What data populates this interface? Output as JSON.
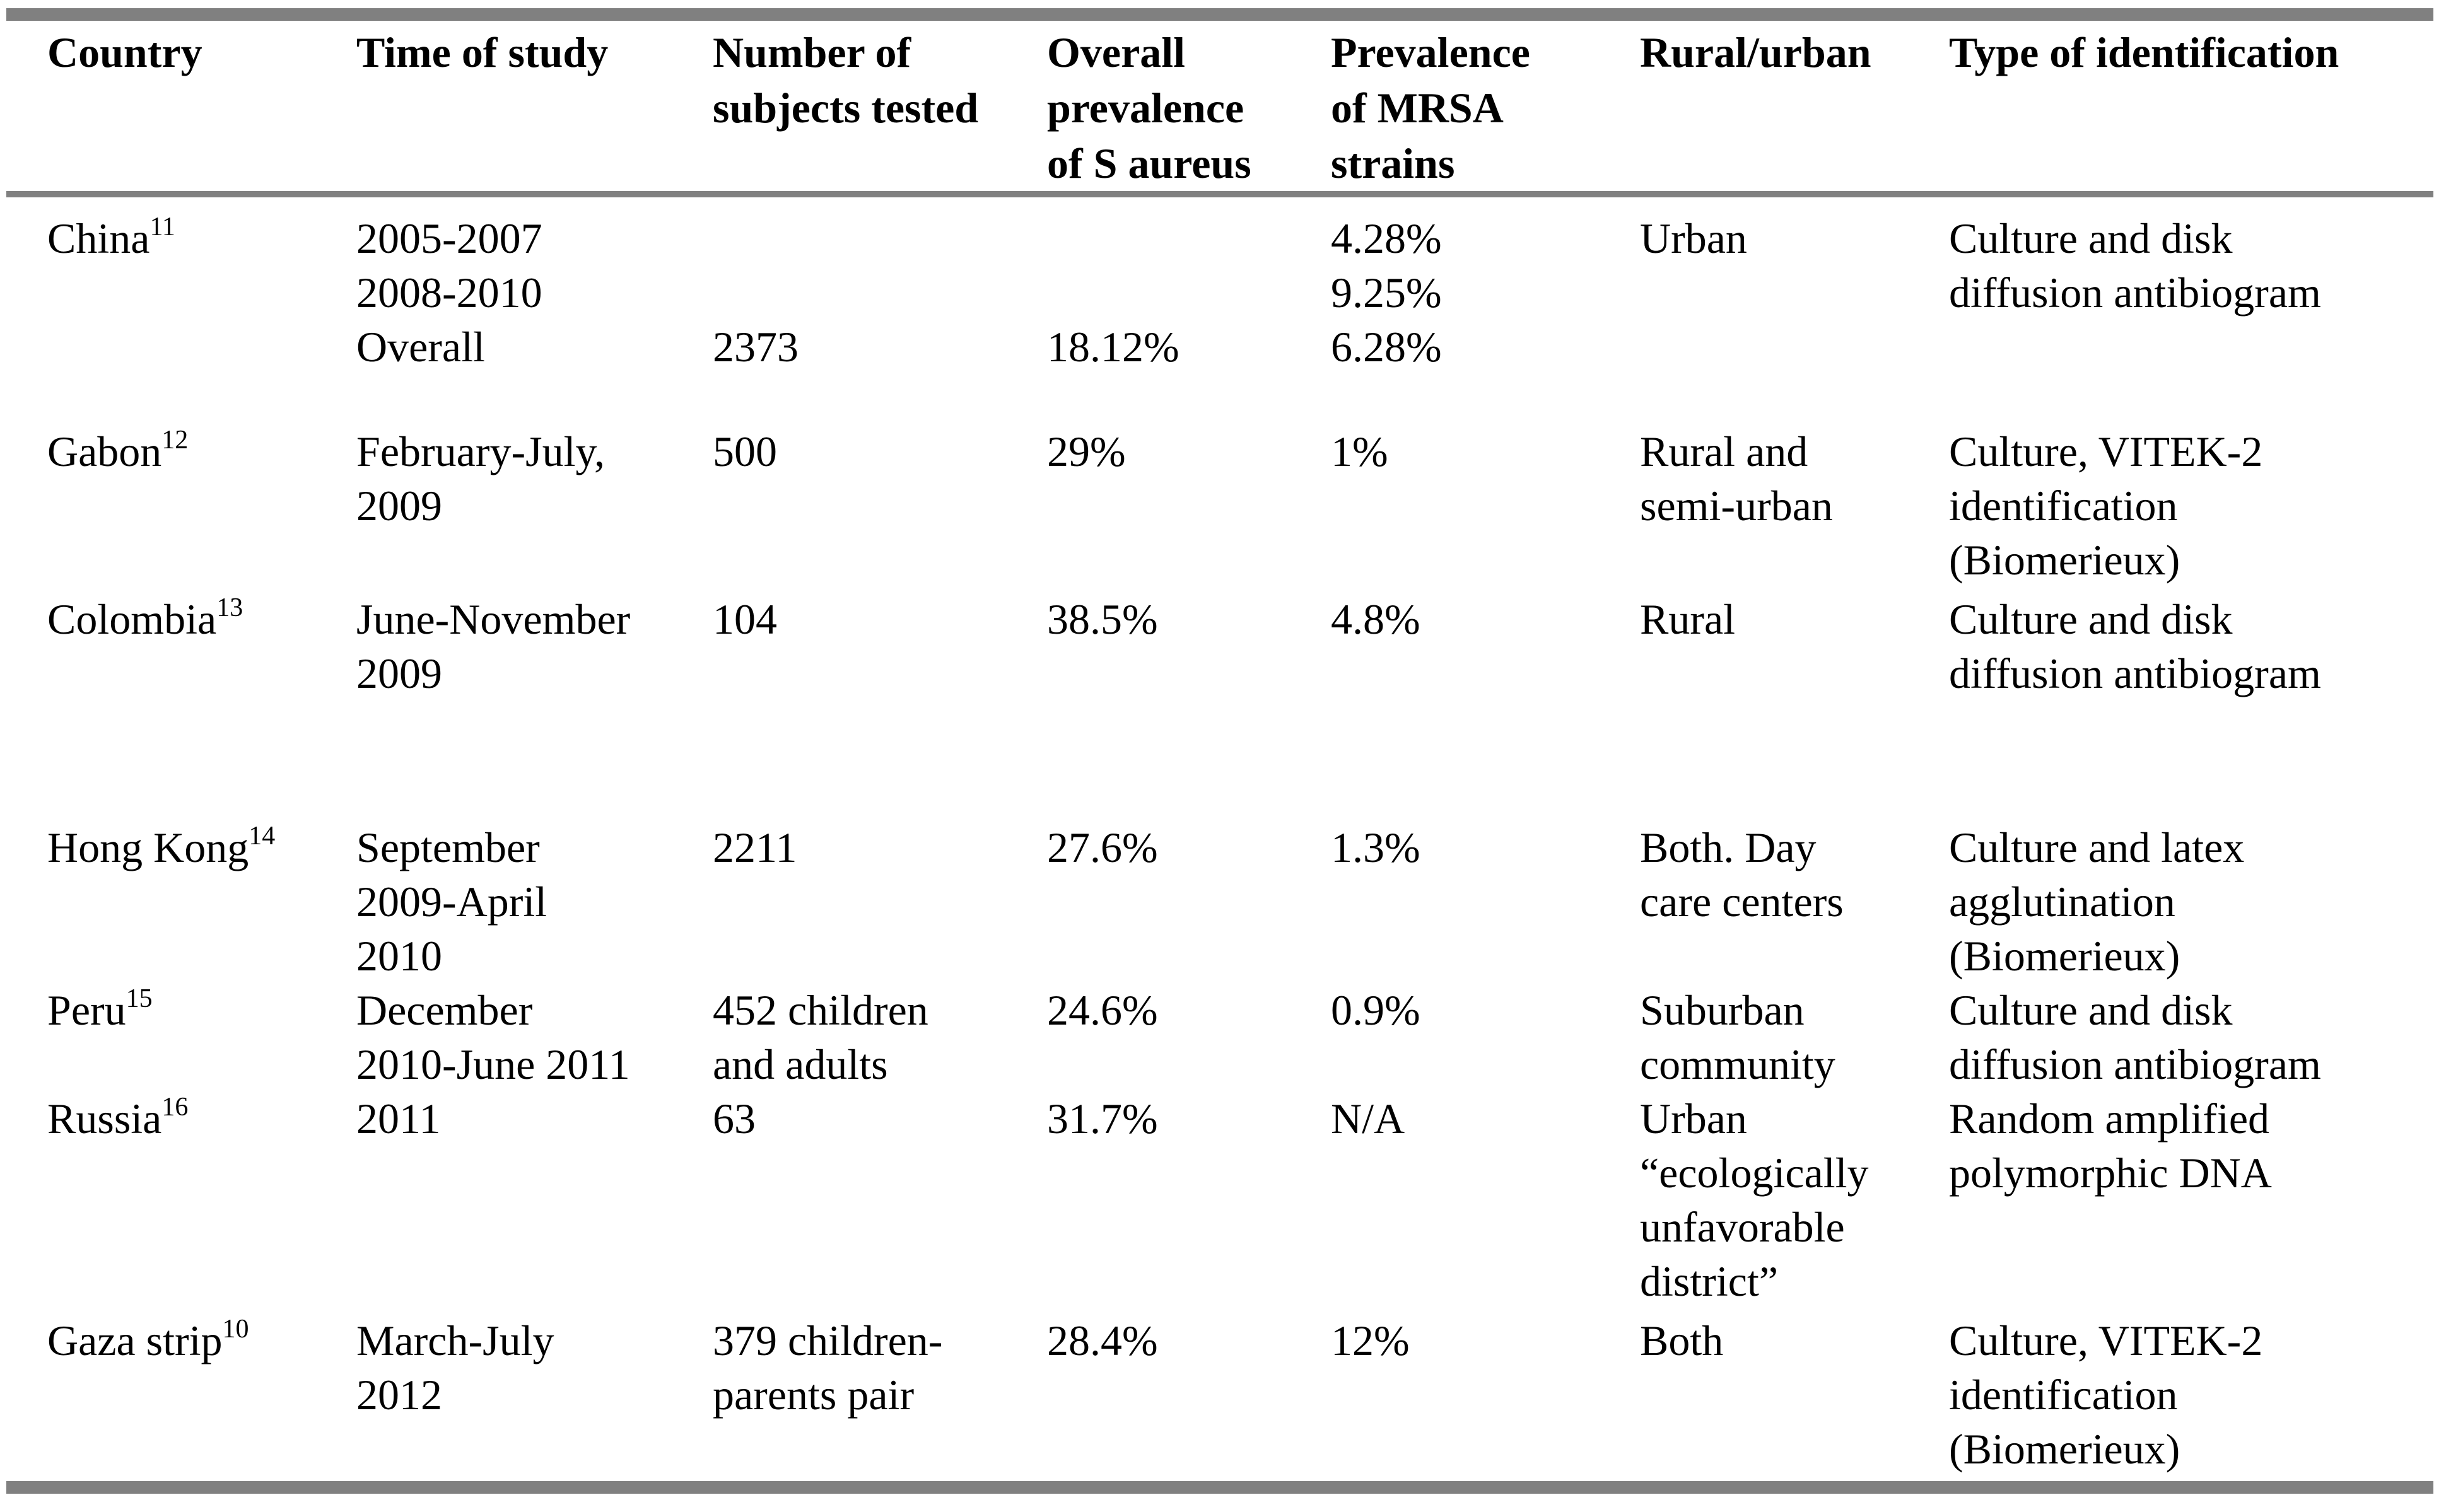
{
  "page": {
    "background": "#ffffff",
    "rule_color": "#808080",
    "text_color": "#000000"
  },
  "table": {
    "columns": [
      {
        "key": "country",
        "label": "Country",
        "lines": [
          "Country"
        ]
      },
      {
        "key": "time",
        "label": "Time of study",
        "lines": [
          "Time of study"
        ]
      },
      {
        "key": "subjects",
        "label": "Number of subjects tested",
        "lines": [
          "Number of",
          "subjects tested"
        ]
      },
      {
        "key": "overall",
        "label": "Overall prevalence of S aureus",
        "lines": [
          "Overall",
          "prevalence",
          "of S aureus"
        ]
      },
      {
        "key": "mrsa",
        "label": "Prevalence of MRSA strains",
        "lines": [
          "Prevalence",
          "of MRSA",
          "strains"
        ]
      },
      {
        "key": "rural_urban",
        "label": "Rural/urban",
        "lines": [
          "Rural/urban"
        ]
      },
      {
        "key": "identification",
        "label": "Type of identification",
        "lines": [
          "Type of identification"
        ]
      }
    ],
    "rows": [
      {
        "country": "China",
        "ref": "11",
        "time": [
          "2005-2007",
          "2008-2010",
          "Overall"
        ],
        "subjects": [
          "",
          "",
          "2373"
        ],
        "overall": [
          "",
          "",
          "18.12%"
        ],
        "mrsa": [
          "4.28%",
          "9.25%",
          "6.28%"
        ],
        "rural_urban": [
          "Urban"
        ],
        "identification": [
          "Culture and disk",
          "diffusion antibiogram"
        ]
      },
      {
        "country": "Gabon",
        "ref": "12",
        "time": [
          "February-July,",
          "2009"
        ],
        "subjects": [
          "500"
        ],
        "overall": [
          "29%"
        ],
        "mrsa": [
          "1%"
        ],
        "rural_urban": [
          "Rural and",
          "semi-urban"
        ],
        "identification": [
          "Culture, VITEK-2",
          "identification",
          "(Biomerieux)"
        ]
      },
      {
        "country": "Colombia",
        "ref": "13",
        "time": [
          "June-November",
          "2009"
        ],
        "subjects": [
          "104"
        ],
        "overall": [
          "38.5%"
        ],
        "mrsa": [
          "4.8%"
        ],
        "rural_urban": [
          "Rural"
        ],
        "identification": [
          "Culture and disk",
          "diffusion antibiogram"
        ]
      },
      {
        "country": "Hong Kong",
        "ref": "14",
        "time": [
          "September",
          "2009-April",
          "2010"
        ],
        "subjects": [
          "2211"
        ],
        "overall": [
          "27.6%"
        ],
        "mrsa": [
          "1.3%"
        ],
        "rural_urban": [
          "Both. Day",
          "care centers"
        ],
        "identification": [
          "Culture and latex",
          "agglutination",
          "(Biomerieux)"
        ]
      },
      {
        "country": "Peru",
        "ref": "15",
        "time": [
          "December",
          "2010-June 2011"
        ],
        "subjects": [
          "452 children",
          "and adults"
        ],
        "overall": [
          "24.6%"
        ],
        "mrsa": [
          "0.9%"
        ],
        "rural_urban": [
          "Suburban",
          "community"
        ],
        "identification": [
          "Culture and disk",
          "diffusion antibiogram"
        ]
      },
      {
        "country": "Russia",
        "ref": "16",
        "time": [
          "2011"
        ],
        "subjects": [
          "63"
        ],
        "overall": [
          "31.7%"
        ],
        "mrsa": [
          "N/A"
        ],
        "rural_urban": [
          "Urban",
          "“ecologically",
          "unfavorable",
          "district”"
        ],
        "identification": [
          "Random amplified",
          "polymorphic DNA"
        ]
      },
      {
        "country": "Gaza strip",
        "ref": "10",
        "time": [
          "March-July",
          "2012"
        ],
        "subjects": [
          "379 children-",
          "parents pair"
        ],
        "overall": [
          "28.4%"
        ],
        "mrsa": [
          "12%"
        ],
        "rural_urban": [
          "Both"
        ],
        "identification": [
          "Culture, VITEK-2",
          "identification",
          "(Biomerieux)"
        ]
      }
    ]
  }
}
